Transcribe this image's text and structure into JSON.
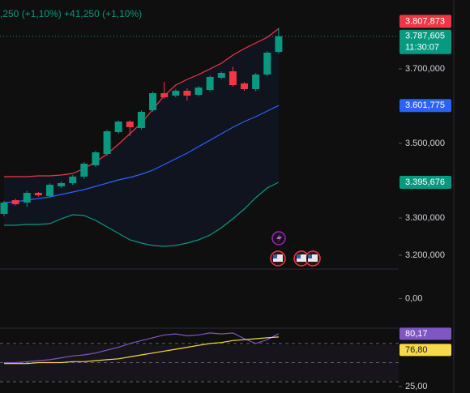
{
  "chart_data": [
    {
      "type": "candlestick",
      "subtitle": ",250 (+1,10%)  +41,250 (+1,10%)",
      "categories": [
        null,
        null,
        null,
        null,
        null,
        null,
        null,
        null,
        null,
        null,
        null,
        null,
        null,
        null,
        null,
        null,
        null,
        null,
        null,
        null,
        null,
        null,
        null,
        null,
        null
      ],
      "open": [
        3311000,
        3347800,
        3341300,
        3367400,
        3358700,
        3384800,
        3393500,
        3410900,
        3441300,
        3471700,
        3530400,
        3558700,
        3541300,
        3589100,
        3634800,
        3628300,
        3641300,
        3630400,
        3643500,
        3676100,
        3693500,
        3660900,
        3645700,
        3684800,
        3745700
      ],
      "high": [
        3346000,
        3352000,
        3373000,
        3370000,
        3393000,
        3398000,
        3415000,
        3450000,
        3480000,
        3537000,
        3562000,
        3562000,
        3589000,
        3639000,
        3665000,
        3645000,
        3648000,
        3654000,
        3682000,
        3693000,
        3706000,
        3665000,
        3689000,
        3748000,
        3810000
      ],
      "low": [
        3305000,
        3333000,
        3330000,
        3357000,
        3354000,
        3380000,
        3389000,
        3405000,
        3437000,
        3467000,
        3526000,
        3520000,
        3537000,
        3585000,
        3620000,
        3624000,
        3615000,
        3626000,
        3640000,
        3672000,
        3652000,
        3641000,
        3640000,
        3680000,
        3741000
      ],
      "close": [
        3341300,
        3337000,
        3367400,
        3360900,
        3389100,
        3393500,
        3410900,
        3445700,
        3476100,
        3532600,
        3558700,
        3543500,
        3584800,
        3634800,
        3623900,
        3641300,
        3628300,
        3650000,
        3678300,
        3689100,
        3656500,
        3645700,
        3684800,
        3743500,
        3787605
      ],
      "last_label": "3.787,605",
      "countdown": "11:30:07",
      "up_color": "#089981",
      "down_color": "#f23645",
      "overlays": [
        {
          "color": "#f23645",
          "last_label": "3.807,873",
          "values": [
            3410900,
            3410900,
            3410900,
            3413000,
            3413000,
            3415200,
            3419600,
            3432600,
            3450000,
            3471700,
            3497800,
            3526100,
            3554300,
            3591300,
            3628300,
            3656500,
            3671700,
            3684800,
            3700000,
            3715200,
            3737000,
            3754300,
            3769600,
            3784800,
            3807873
          ]
        },
        {
          "color": "#2962ff",
          "last_label": "3.601,775",
          "values": [
            3341300,
            3343500,
            3347800,
            3352200,
            3356500,
            3363000,
            3369600,
            3376100,
            3384800,
            3393500,
            3402200,
            3408700,
            3417400,
            3428300,
            3443500,
            3458700,
            3473900,
            3491300,
            3508700,
            3526100,
            3543500,
            3558700,
            3571700,
            3587000,
            3601775
          ]
        },
        {
          "color": "#089981",
          "last_label": "3.395,676",
          "values": [
            3280400,
            3280400,
            3282600,
            3282600,
            3284800,
            3297800,
            3308700,
            3306500,
            3293500,
            3276100,
            3258700,
            3241300,
            3232600,
            3226100,
            3223900,
            3226100,
            3232600,
            3241300,
            3254300,
            3273900,
            3297800,
            3323900,
            3354300,
            3380400,
            3395676
          ]
        }
      ],
      "ylim": [
        3163040,
        3884800
      ],
      "yticks": [
        {
          "value": 3700000,
          "label": "3.700,000"
        },
        {
          "value": 3500000,
          "label": "3.500,000"
        },
        {
          "value": 3300000,
          "label": "3.300,000"
        },
        {
          "value": 3200000,
          "label": "3.200,000"
        }
      ]
    },
    {
      "type": "line",
      "series": [],
      "ylim": [
        -1,
        1
      ],
      "yticks": [
        {
          "value": 0,
          "label": "0,00"
        }
      ]
    },
    {
      "type": "line",
      "series": [
        {
          "color": "#7e57c2",
          "last_label": "80,17",
          "values": [
            50,
            50,
            51,
            52,
            53,
            55,
            57,
            58,
            60,
            63,
            66,
            70,
            73,
            76,
            79,
            80,
            78,
            79,
            81,
            80,
            81,
            75,
            70,
            74,
            80.17
          ]
        },
        {
          "color": "#f7d94c",
          "last_label": "76,80",
          "values": [
            49,
            49,
            49,
            50,
            50,
            50,
            51,
            51,
            52,
            53,
            54,
            56,
            58,
            60,
            62,
            64,
            66,
            68,
            70,
            71,
            73,
            74,
            75,
            76,
            76.8
          ]
        }
      ],
      "levels": [
        30,
        50,
        70
      ],
      "ylim": [
        18.2,
        86
      ],
      "yticks": [
        {
          "value": 25,
          "label": "25,00"
        }
      ]
    }
  ]
}
